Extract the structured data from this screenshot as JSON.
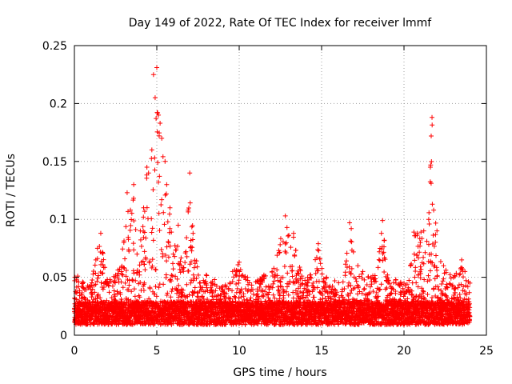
{
  "chart_data": {
    "type": "scatter",
    "title": "Day 149 of 2022, Rate Of TEC Index for receiver lmmf",
    "xlabel": "GPS time / hours",
    "ylabel": "ROTI / TECUs",
    "xlim": [
      0,
      25
    ],
    "ylim": [
      0,
      0.25
    ],
    "xticks": [
      0,
      5,
      10,
      15,
      20,
      25
    ],
    "yticks": [
      0,
      0.05,
      0.1,
      0.15,
      0.2,
      0.25
    ],
    "xtick_labels": [
      "0",
      "5",
      "10",
      "15",
      "20",
      "25"
    ],
    "ytick_labels": [
      "0",
      "0.05",
      "0.1",
      "0.15",
      "0.2",
      "0.25"
    ],
    "grid": true,
    "marker": "+",
    "color": "#ff0000",
    "series": [
      {
        "name": "ROTI",
        "points": [
          [
            0.2,
            0.051
          ],
          [
            0.5,
            0.046
          ],
          [
            1.0,
            0.043
          ],
          [
            1.4,
            0.075
          ],
          [
            1.6,
            0.088
          ],
          [
            2.0,
            0.048
          ],
          [
            2.5,
            0.052
          ],
          [
            3.0,
            0.08
          ],
          [
            3.2,
            0.123
          ],
          [
            3.4,
            0.108
          ],
          [
            3.6,
            0.13
          ],
          [
            3.8,
            0.07
          ],
          [
            4.0,
            0.09
          ],
          [
            4.2,
            0.11
          ],
          [
            4.4,
            0.145
          ],
          [
            4.5,
            0.14
          ],
          [
            4.7,
            0.16
          ],
          [
            4.8,
            0.225
          ],
          [
            4.9,
            0.205
          ],
          [
            5.0,
            0.231
          ],
          [
            5.1,
            0.19
          ],
          [
            5.2,
            0.183
          ],
          [
            5.3,
            0.17
          ],
          [
            5.5,
            0.15
          ],
          [
            5.6,
            0.13
          ],
          [
            5.8,
            0.11
          ],
          [
            6.0,
            0.07
          ],
          [
            6.3,
            0.095
          ],
          [
            6.6,
            0.058
          ],
          [
            6.9,
            0.108
          ],
          [
            7.0,
            0.14
          ],
          [
            7.2,
            0.088
          ],
          [
            7.6,
            0.045
          ],
          [
            8.0,
            0.052
          ],
          [
            8.5,
            0.048
          ],
          [
            9.0,
            0.042
          ],
          [
            9.6,
            0.055
          ],
          [
            10.0,
            0.063
          ],
          [
            10.5,
            0.05
          ],
          [
            11.0,
            0.046
          ],
          [
            11.5,
            0.052
          ],
          [
            12.0,
            0.055
          ],
          [
            12.3,
            0.069
          ],
          [
            12.8,
            0.103
          ],
          [
            12.9,
            0.093
          ],
          [
            13.3,
            0.088
          ],
          [
            13.8,
            0.051
          ],
          [
            14.3,
            0.052
          ],
          [
            14.8,
            0.079
          ],
          [
            14.9,
            0.066
          ],
          [
            15.3,
            0.05
          ],
          [
            15.8,
            0.047
          ],
          [
            16.3,
            0.046
          ],
          [
            16.7,
            0.097
          ],
          [
            16.8,
            0.092
          ],
          [
            17.2,
            0.06
          ],
          [
            17.5,
            0.055
          ],
          [
            18.0,
            0.05
          ],
          [
            18.5,
            0.072
          ],
          [
            18.7,
            0.099
          ],
          [
            19.0,
            0.052
          ],
          [
            19.5,
            0.048
          ],
          [
            20.0,
            0.045
          ],
          [
            20.4,
            0.06
          ],
          [
            20.6,
            0.089
          ],
          [
            20.8,
            0.088
          ],
          [
            21.2,
            0.09
          ],
          [
            21.5,
            0.1
          ],
          [
            21.6,
            0.145
          ],
          [
            21.65,
            0.172
          ],
          [
            21.7,
            0.188
          ],
          [
            21.8,
            0.108
          ],
          [
            22.0,
            0.09
          ],
          [
            22.4,
            0.06
          ],
          [
            23.0,
            0.05
          ],
          [
            23.5,
            0.065
          ],
          [
            23.7,
            0.055
          ],
          [
            24.0,
            0.045
          ]
        ]
      }
    ]
  }
}
